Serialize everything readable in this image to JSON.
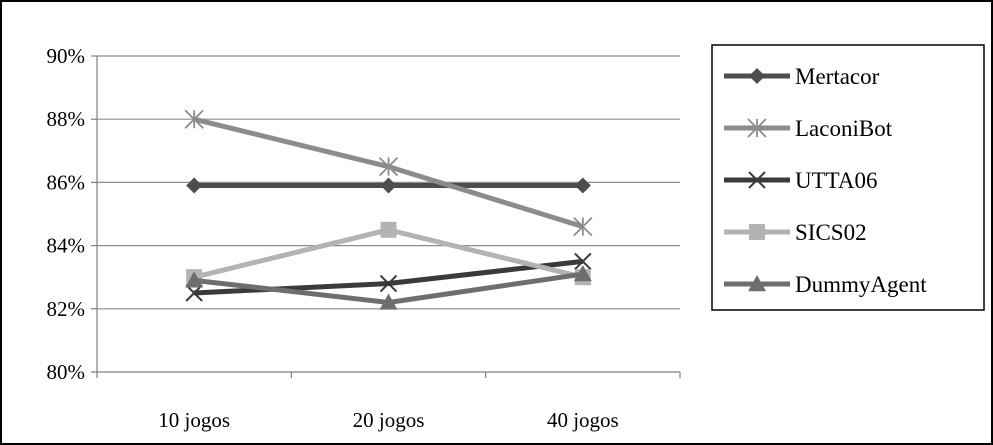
{
  "chart_data": {
    "type": "line",
    "categories": [
      "10 jogos",
      "20 jogos",
      "40 jogos"
    ],
    "yticks": [
      "80%",
      "82%",
      "84%",
      "86%",
      "88%",
      "90%"
    ],
    "ylim": [
      80,
      90
    ],
    "grid": true,
    "legend_position": "right",
    "series": [
      {
        "name": "Mertacor",
        "values": [
          85.9,
          85.9,
          85.9
        ],
        "color": "#4d4d4d",
        "marker": "diamond"
      },
      {
        "name": "LaconiBot",
        "values": [
          88.0,
          86.5,
          84.6
        ],
        "color": "#8c8c8c",
        "marker": "asterisk"
      },
      {
        "name": "UTTA06",
        "values": [
          82.5,
          82.8,
          83.5
        ],
        "color": "#3a3a3a",
        "marker": "x"
      },
      {
        "name": "SICS02",
        "values": [
          83.0,
          84.5,
          83.0
        ],
        "color": "#b3b3b3",
        "marker": "square"
      },
      {
        "name": "DummyAgent",
        "values": [
          82.9,
          82.2,
          83.1
        ],
        "color": "#6e6e6e",
        "marker": "triangle"
      }
    ]
  }
}
